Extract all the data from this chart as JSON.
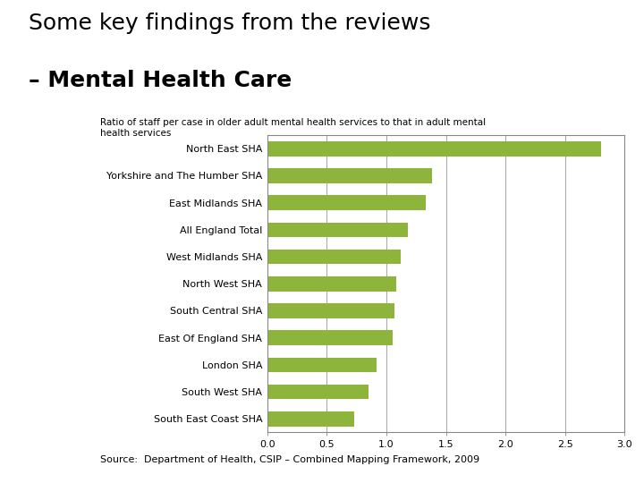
{
  "title_line1": "Some key findings from the reviews",
  "title_line2": "– Mental Health Care",
  "subtitle": "Ratio of staff per case in older adult mental health services to that in adult mental\nhealth services",
  "source": "Source:  Department of Health, CSIP – Combined Mapping Framework, 2009",
  "categories": [
    "North East SHA",
    "Yorkshire and The Humber SHA",
    "East Midlands SHA",
    "All England Total",
    "West Midlands SHA",
    "North West SHA",
    "South Central SHA",
    "East Of England SHA",
    "London SHA",
    "South West SHA",
    "South East Coast SHA"
  ],
  "values": [
    2.8,
    1.38,
    1.33,
    1.18,
    1.12,
    1.08,
    1.07,
    1.05,
    0.92,
    0.85,
    0.73
  ],
  "bar_color": "#8db53c",
  "xlim": [
    0.0,
    3.0
  ],
  "xticks": [
    0.0,
    0.5,
    1.0,
    1.5,
    2.0,
    2.5,
    3.0
  ],
  "background_color": "#ffffff",
  "chart_bg": "#ffffff",
  "title1_fontsize": 18,
  "title2_fontsize": 18,
  "subtitle_fontsize": 7.5,
  "source_fontsize": 8,
  "tick_fontsize": 8,
  "label_fontsize": 8
}
